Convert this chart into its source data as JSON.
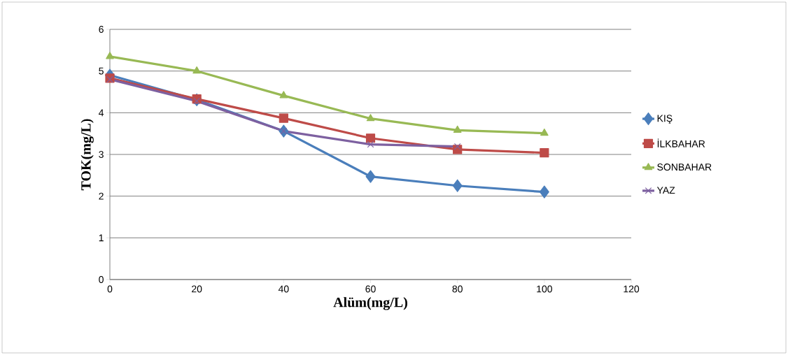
{
  "chart_data": {
    "type": "line",
    "xlabel": "Alüm(mg/L)",
    "ylabel": "TOK(mg/L)",
    "x": [
      0,
      20,
      40,
      60,
      80,
      100
    ],
    "xlim": [
      0,
      120
    ],
    "xticks": [
      0,
      20,
      40,
      60,
      80,
      100,
      120
    ],
    "ylim": [
      0,
      6
    ],
    "yticks": [
      0,
      1,
      2,
      3,
      4,
      5,
      6
    ],
    "grid": "y",
    "legend": "right",
    "line_style": "solid",
    "series": [
      {
        "name": "KIŞ",
        "color": "#4a7ebb",
        "marker": "diamond",
        "values": [
          4.9,
          4.31,
          3.56,
          2.47,
          2.25,
          2.1
        ]
      },
      {
        "name": "İLKBAHAR",
        "color": "#be4b48",
        "marker": "square",
        "values": [
          4.83,
          4.33,
          3.87,
          3.39,
          3.12,
          3.04
        ]
      },
      {
        "name": "SONBAHAR",
        "color": "#98b954",
        "marker": "triangle",
        "values": [
          5.35,
          5.0,
          4.41,
          3.86,
          3.58,
          3.51
        ]
      },
      {
        "name": "YAZ",
        "color": "#7d60a0",
        "marker": "cross",
        "values": [
          4.8,
          4.28,
          3.56,
          3.24,
          3.19,
          null
        ]
      }
    ]
  }
}
